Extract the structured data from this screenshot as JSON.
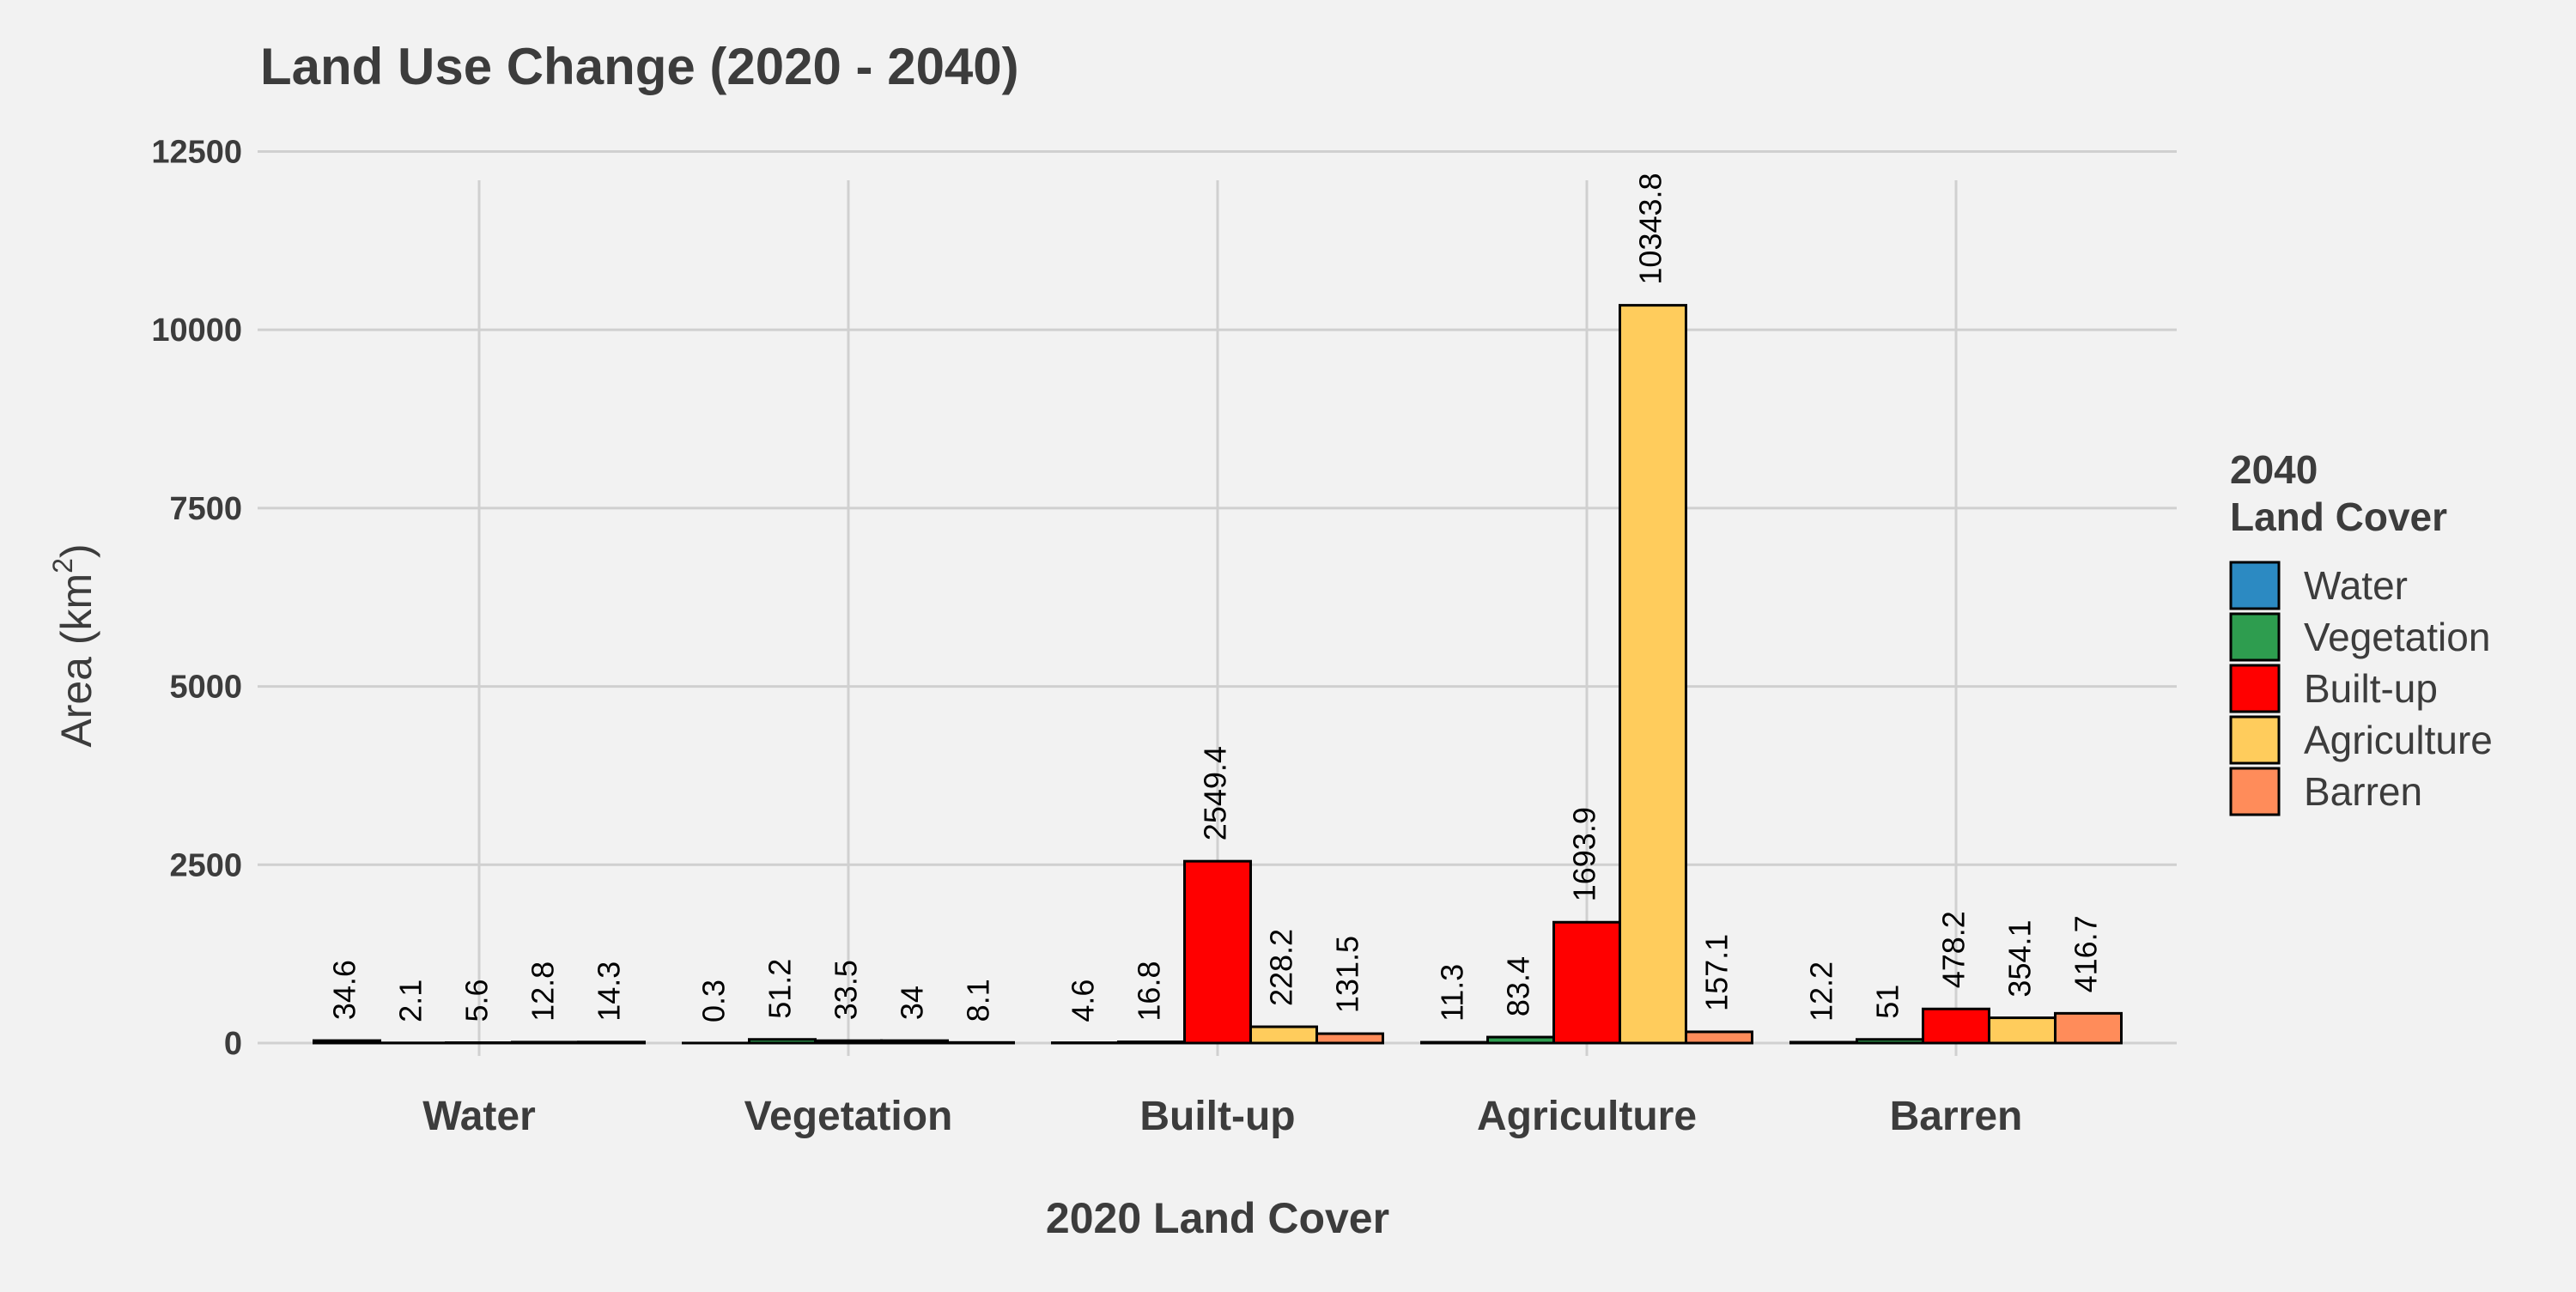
{
  "chart_data": {
    "type": "bar",
    "title": "Land Use Change (2020 - 2040)",
    "xlabel": "2020 Land Cover",
    "ylabel": "Area (km",
    "ylabel_superscript": "2",
    "ylabel_suffix": ")",
    "ylim": [
      0,
      13000
    ],
    "yticks": [
      0,
      2500,
      5000,
      7500,
      10000,
      12500
    ],
    "grid": true,
    "legend_position": "right",
    "legend_title_line1": "2040",
    "legend_title_line2": "Land Cover",
    "categories": [
      "Water",
      "Vegetation",
      "Built-up",
      "Agriculture",
      "Barren"
    ],
    "series": [
      {
        "name": "Water",
        "color": "#2c8ac2",
        "values": [
          34.6,
          0.3,
          4.6,
          11.3,
          12.2
        ]
      },
      {
        "name": "Vegetation",
        "color": "#2e9d4f",
        "values": [
          2.1,
          51.2,
          16.8,
          83.4,
          51
        ]
      },
      {
        "name": "Built-up",
        "color": "#ff0000",
        "values": [
          5.6,
          33.5,
          2549.4,
          1693.9,
          478.2
        ]
      },
      {
        "name": "Agriculture",
        "color": "#ffcc5c",
        "values": [
          12.8,
          34,
          228.2,
          10343.8,
          354.1
        ]
      },
      {
        "name": "Barren",
        "color": "#ff8c5a",
        "values": [
          14.3,
          8.1,
          131.5,
          157.1,
          416.7
        ]
      }
    ]
  }
}
